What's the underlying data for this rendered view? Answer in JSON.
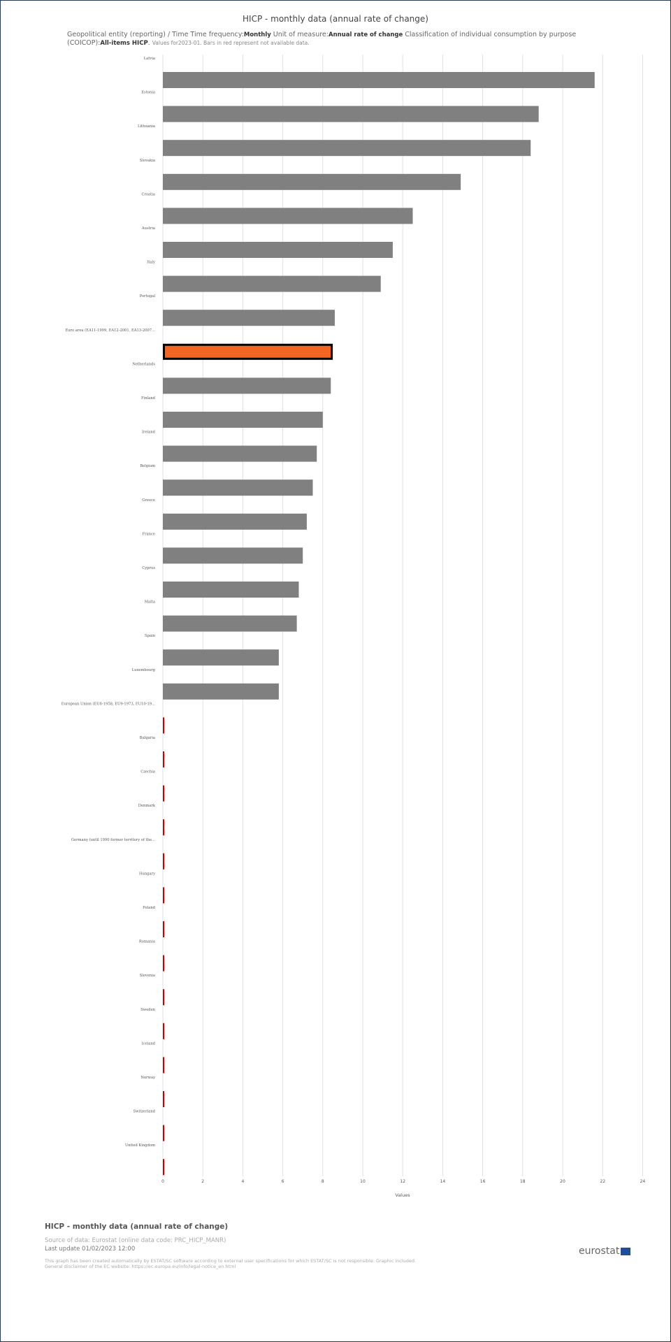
{
  "header": {
    "title": "HICP - monthly data (annual rate of change)",
    "subtitle_prefix": "Geopolitical entity (reporting) / Time  Time frequency:",
    "time_frequency": "Monthly",
    "unit_prefix": "  Unit of measure:",
    "unit": "Annual rate of change",
    "classification_prefix": "  Classification of individual consumption by purpose (COICOP):",
    "classification": "All-items HICP",
    "note": "Values for2023-01. Bars in red represent not available data."
  },
  "footer": {
    "title": "HICP - monthly data (annual rate of change)",
    "source": "Source of data: Eurostat (online data code: PRC_HICP_MANR)",
    "last_update": "Last update 01/02/2023 12:00",
    "note_line1": "This graph has been created automatically by ESTAT/SC software according to external user specifications for which ESTAT/SC is not responsible. Graphic included.",
    "note_line2": "General disclaimer of the EC website: https://ec.europa.eu/info/legal-notice_en.html",
    "logo_text": "eurostat"
  },
  "colors": {
    "bar": "#808080",
    "highlight": "#f26522",
    "missing": "#cc0000",
    "grid": "#e0e0e0"
  },
  "chart_data": {
    "type": "bar",
    "orientation": "horizontal",
    "xlabel": "Values",
    "xlim": [
      0,
      24
    ],
    "xticks": [
      0,
      2,
      4,
      6,
      8,
      10,
      12,
      14,
      16,
      18,
      20,
      22,
      24
    ],
    "grid": true,
    "highlight_category": "Euro area (EA11-1999, EA12-2001, EA13-2007...",
    "categories": [
      "Latvia",
      "Estonia",
      "Lithuania",
      "Slovakia",
      "Croatia",
      "Austria",
      "Italy",
      "Portugal",
      "Euro area (EA11-1999, EA12-2001, EA13-2007...",
      "Netherlands",
      "Finland",
      "Ireland",
      "Belgium",
      "Greece",
      "France",
      "Cyprus",
      "Malta",
      "Spain",
      "Luxembourg",
      "European Union (EU6-1958, EU9-1973, EU10-19...",
      "Bulgaria",
      "Czechia",
      "Denmark",
      "Germany (until 1990 former territory of the...",
      "Hungary",
      "Poland",
      "Romania",
      "Slovenia",
      "Sweden",
      "Iceland",
      "Norway",
      "Switzerland",
      "United Kingdom"
    ],
    "values": [
      21.6,
      18.8,
      18.4,
      14.9,
      12.5,
      11.5,
      10.9,
      8.6,
      8.5,
      8.4,
      8.0,
      7.7,
      7.5,
      7.2,
      7.0,
      6.8,
      6.7,
      5.8,
      5.8,
      null,
      null,
      null,
      null,
      null,
      null,
      null,
      null,
      null,
      null,
      null,
      null,
      null,
      null
    ]
  }
}
